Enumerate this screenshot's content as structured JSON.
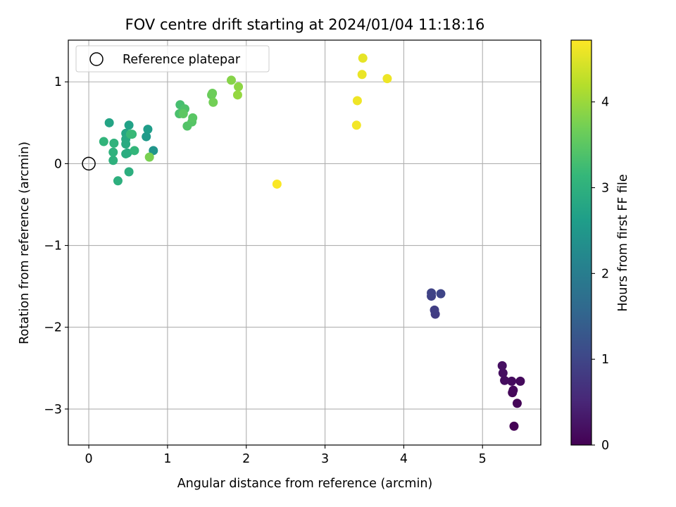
{
  "chart_data": {
    "type": "scatter",
    "title": "FOV centre drift starting at 2024/01/04 11:18:16",
    "xlabel": "Angular distance from reference (arcmin)",
    "ylabel": "Rotation from reference (arcmin)",
    "xlim": [
      -0.26,
      5.74
    ],
    "ylim": [
      -3.44,
      1.51
    ],
    "xticks": [
      0,
      1,
      2,
      3,
      4,
      5
    ],
    "xtick_labels": [
      "0",
      "1",
      "2",
      "3",
      "4",
      "5"
    ],
    "yticks": [
      1,
      0,
      -1,
      -2,
      -3
    ],
    "ytick_labels": [
      "1",
      "0",
      "−1",
      "−2",
      "−3"
    ],
    "grid": true,
    "legend": {
      "position": "top-left",
      "entries": [
        "Reference platepar"
      ]
    },
    "reference_point": {
      "x": 0,
      "y": 0
    },
    "colorbar": {
      "label": "Hours from first FF file",
      "range": [
        0,
        4.72
      ],
      "ticks": [
        0,
        1,
        2,
        3,
        4
      ],
      "tick_labels": [
        "0",
        "1",
        "2",
        "3",
        "4"
      ],
      "colormap": [
        "#440154",
        "#482878",
        "#3e4989",
        "#31688e",
        "#26828e",
        "#1f9e89",
        "#35b779",
        "#6ece58",
        "#b5de2b",
        "#fde725"
      ]
    },
    "points": [
      {
        "x": 5.4,
        "y": -3.21,
        "t": 0.02
      },
      {
        "x": 5.44,
        "y": -2.93,
        "t": 0.05
      },
      {
        "x": 5.38,
        "y": -2.8,
        "t": 0.08
      },
      {
        "x": 5.39,
        "y": -2.77,
        "t": 0.1
      },
      {
        "x": 5.48,
        "y": -2.66,
        "t": 0.12
      },
      {
        "x": 5.37,
        "y": -2.66,
        "t": 0.14
      },
      {
        "x": 5.28,
        "y": -2.65,
        "t": 0.16
      },
      {
        "x": 5.26,
        "y": -2.56,
        "t": 0.18
      },
      {
        "x": 5.25,
        "y": -2.47,
        "t": 0.2
      },
      {
        "x": 4.4,
        "y": -1.84,
        "t": 0.85
      },
      {
        "x": 4.39,
        "y": -1.79,
        "t": 0.88
      },
      {
        "x": 4.35,
        "y": -1.62,
        "t": 0.92
      },
      {
        "x": 4.35,
        "y": -1.58,
        "t": 0.95
      },
      {
        "x": 4.47,
        "y": -1.59,
        "t": 0.98
      },
      {
        "x": 0.82,
        "y": 0.16,
        "t": 2.45
      },
      {
        "x": 0.73,
        "y": 0.33,
        "t": 2.55
      },
      {
        "x": 0.75,
        "y": 0.42,
        "t": 2.6
      },
      {
        "x": 0.51,
        "y": 0.47,
        "t": 2.7
      },
      {
        "x": 0.26,
        "y": 0.5,
        "t": 2.75
      },
      {
        "x": 0.47,
        "y": 0.37,
        "t": 2.8
      },
      {
        "x": 0.47,
        "y": 0.3,
        "t": 2.85
      },
      {
        "x": 0.47,
        "y": 0.24,
        "t": 2.88
      },
      {
        "x": 0.49,
        "y": 0.13,
        "t": 2.9
      },
      {
        "x": 0.47,
        "y": 0.12,
        "t": 2.92
      },
      {
        "x": 0.51,
        "y": -0.1,
        "t": 2.95
      },
      {
        "x": 0.37,
        "y": -0.21,
        "t": 2.98
      },
      {
        "x": 0.31,
        "y": 0.04,
        "t": 3.0
      },
      {
        "x": 0.31,
        "y": 0.14,
        "t": 3.02
      },
      {
        "x": 0.32,
        "y": 0.25,
        "t": 3.05
      },
      {
        "x": 0.19,
        "y": 0.27,
        "t": 3.08
      },
      {
        "x": 0.58,
        "y": 0.16,
        "t": 3.1
      },
      {
        "x": 0.55,
        "y": 0.36,
        "t": 3.15
      },
      {
        "x": 0.53,
        "y": 0.36,
        "t": 3.18
      },
      {
        "x": 1.16,
        "y": 0.72,
        "t": 3.3
      },
      {
        "x": 1.15,
        "y": 0.61,
        "t": 3.35
      },
      {
        "x": 1.22,
        "y": 0.67,
        "t": 3.38
      },
      {
        "x": 1.25,
        "y": 0.46,
        "t": 3.42
      },
      {
        "x": 1.31,
        "y": 0.51,
        "t": 3.45
      },
      {
        "x": 1.32,
        "y": 0.56,
        "t": 3.48
      },
      {
        "x": 1.2,
        "y": 0.61,
        "t": 3.52
      },
      {
        "x": 1.56,
        "y": 0.84,
        "t": 3.6
      },
      {
        "x": 1.57,
        "y": 0.86,
        "t": 3.65
      },
      {
        "x": 1.58,
        "y": 0.75,
        "t": 3.7
      },
      {
        "x": 0.77,
        "y": 0.08,
        "t": 3.75
      },
      {
        "x": 1.81,
        "y": 1.02,
        "t": 3.85
      },
      {
        "x": 1.9,
        "y": 0.94,
        "t": 3.9
      },
      {
        "x": 1.89,
        "y": 0.84,
        "t": 3.95
      },
      {
        "x": 3.48,
        "y": 1.29,
        "t": 4.55
      },
      {
        "x": 3.47,
        "y": 1.09,
        "t": 4.58
      },
      {
        "x": 3.79,
        "y": 1.04,
        "t": 4.6
      },
      {
        "x": 3.41,
        "y": 0.77,
        "t": 4.62
      },
      {
        "x": 3.4,
        "y": 0.47,
        "t": 4.65
      },
      {
        "x": 2.39,
        "y": -0.25,
        "t": 4.7
      }
    ]
  }
}
